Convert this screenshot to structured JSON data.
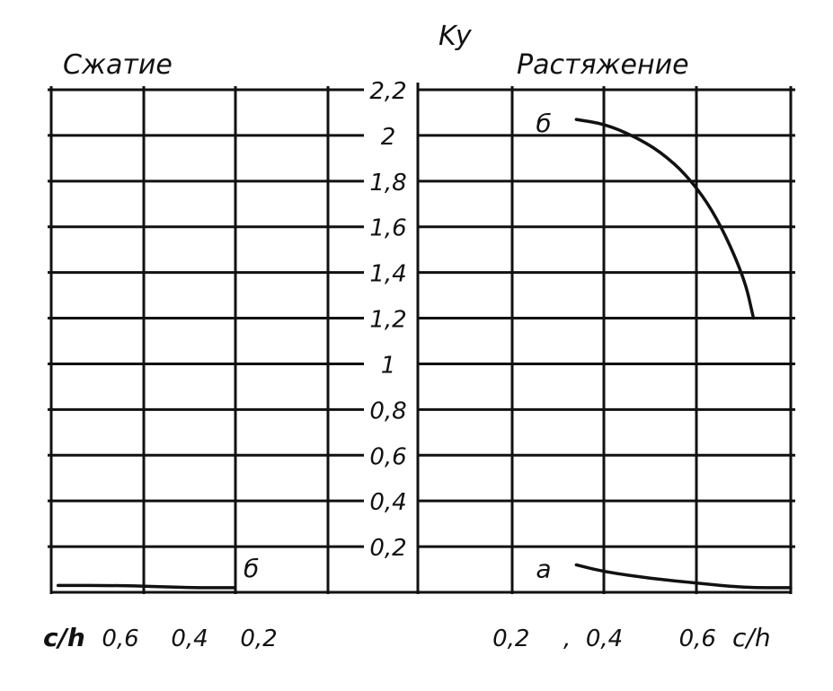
{
  "chart_data": {
    "type": "line",
    "y_axis_label": "Ky",
    "y_ticks": [
      "2,2",
      "2",
      "1,8",
      "1,6",
      "1,4",
      "1,2",
      "1",
      "0,8",
      "0,6",
      "0,4",
      "0,2"
    ],
    "y_tick_values": [
      2.2,
      2.0,
      1.8,
      1.6,
      1.4,
      1.2,
      1.0,
      0.8,
      0.6,
      0.4,
      0.2
    ],
    "ylim": [
      0,
      2.2
    ],
    "grid": true,
    "panels": [
      {
        "title": "Сжатие",
        "x_axis_label": "c/h",
        "x_ticks": [
          "0,6",
          "0,4",
          "0,2"
        ],
        "x_tick_values": [
          0.6,
          0.4,
          0.2
        ],
        "xlim": [
          0.8,
          0.0
        ],
        "series": [
          {
            "name": "б",
            "x": [
              0.78,
              0.6,
              0.4,
              0.27
            ],
            "y": [
              0.03,
              0.03,
              0.02,
              0.02
            ]
          }
        ]
      },
      {
        "title": "Растяжение",
        "x_axis_label": "c/h",
        "x_ticks": [
          "0,2",
          "0,4",
          "0,6"
        ],
        "x_tick_values": [
          0.2,
          0.4,
          0.6
        ],
        "separator": ",",
        "xlim": [
          0.0,
          0.8
        ],
        "series": [
          {
            "name": "б",
            "x": [
              0.34,
              0.4,
              0.46,
              0.52,
              0.58,
              0.64,
              0.7,
              0.72
            ],
            "y": [
              2.07,
              2.05,
              2.0,
              1.93,
              1.82,
              1.65,
              1.38,
              1.2
            ]
          },
          {
            "name": "а",
            "x": [
              0.34,
              0.4,
              0.5,
              0.6,
              0.7,
              0.8
            ],
            "y": [
              0.12,
              0.09,
              0.06,
              0.04,
              0.02,
              0.02
            ]
          }
        ]
      }
    ]
  }
}
